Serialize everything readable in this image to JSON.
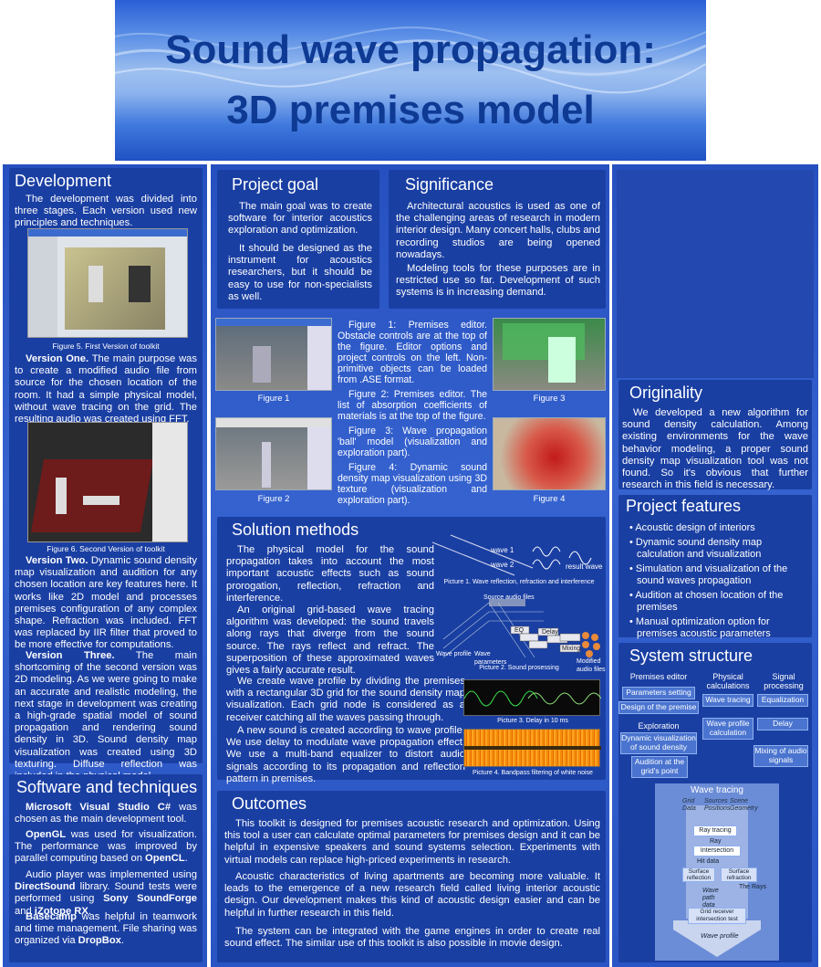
{
  "title_line1": "Sound wave propagation:",
  "title_line2": "3D premises model",
  "development": {
    "heading": "Development",
    "intro": "The development was divided into three stages. Each version used new principles and techniques.",
    "fig5_caption": "Figure 5. First Version of toolkit",
    "v1_title": "Version One.",
    "v1_text": "The main purpose was to create a modified audio file from source for the chosen location of the room. It had a simple physical model, without wave tracing on the grid. The resulting audio was created using FFT.",
    "fig6_caption": "Figure 6. Second Version of toolkit",
    "v2_title": "Version Two.",
    "v2_text": "Dynamic sound density map visualization and audition for any chosen location are key features here. It works like 2D model and processes premises configuration of any complex shape. Refraction was included. FFT was replaced by IIR filter that proved to be more effective for computations.",
    "v3_title": "Version Three.",
    "v3_text": "The main shortcoming of the second version was 2D modeling. As we were going to make an accurate and realistic modeling, the next stage in development was creating a high-grade spatial model of sound propagation and rendering sound density in 3D. Sound density map visualization was created using 3D texturing. Diffuse reflection was included in the physical model."
  },
  "software": {
    "heading": "Software and techniques",
    "p1_bold": "Microsoft Visual Studio C#",
    "p1_text": " was chosen as the main development tool.",
    "p2_bold": "OpenGL",
    "p2_text": " was used for visualization. The performance was improved by parallel computing based on ",
    "p2_bold2": "OpenCL",
    "p3_text": "Audio player was implemented using ",
    "p3_bold": "DirectSound",
    "p3_text2": " library. Sound tests were performed using ",
    "p3_bold2": "Sony SoundForge",
    "p3_text3": " and ",
    "p3_bold3": "iZotope RX",
    "p4_bold": "Basecamp",
    "p4_text": " was helpful in teamwork and time management. File sharing was organized via ",
    "p4_bold2": "DropBox"
  },
  "goal": {
    "heading": "Project goal",
    "p1": "The main goal was to create software for interior acoustics exploration and optimization.",
    "p2": "It should be designed as the instrument for acoustics researchers, but it should be easy to use for non-specialists as well."
  },
  "significance": {
    "heading": "Significance",
    "p1": "Architectural acoustics is used as one of the challenging areas of research in modern interior design. Many concert halls, clubs and recording studios are being opened nowadays.",
    "p2": "Modeling tools for these purposes are in restricted use so far. Development of such systems is  in increasing demand."
  },
  "figures": {
    "f1": "Figure 1",
    "f2": "Figure 2",
    "f3": "Figure 3",
    "f4": "Figure 4",
    "d1": "Figure 1: Premises editor. Obstacle controls are at the top of the figure. Editor options and project controls on the left. Non-primitive objects can be loaded from .ASE format.",
    "d2": "Figure 2: Premises editor. The list of absorption coefficients of materials is at the top of the figure.",
    "d3": "Figure 3: Wave propagation 'ball' model (visualization and exploration part).",
    "d4": "Figure 4: Dynamic sound density map visualization using 3D texture (visualization and exploration part)."
  },
  "solution": {
    "heading": "Solution methods",
    "p1": "The physical model for the sound propagation takes into account the most important acoustic effects such as sound prorogation, reflection, refraction and interference.",
    "p2": "An original grid-based wave tracing algorithm was developed: the sound travels along rays that diverge from the sound source. The rays reflect and refract. The superposition of these approximated waves gives a fairly accurate result.",
    "p3": "We create wave profile by dividing the premises with a rectangular 3D grid for the sound density map visualization. Each grid node is considered as a receiver catching all the waves passing through.",
    "p4": "A new sound is created according to wave profile. We use delay to modulate wave propagation effect. We use a multi-band equalizer to distort audio signals according to its propagation and reflection pattern in premises.",
    "pic1": "Picture 1. Wave reflection, refraction and interference",
    "pic2": "Picture 2. Sound prosessing",
    "pic3": "Picture 3. Delay in 10 ms",
    "pic4": "Picture 4. Bandpass filtering of white noise",
    "wave1": "wave 1",
    "wave2": "wave 2",
    "result": "result wave",
    "source_files": "Source audio files",
    "wave_profile": "Wave profile",
    "wave_params": "Wave parameters",
    "modified": "Modified audio files",
    "eq": "EQ",
    "delay": "Delay",
    "mixing": "Mixing"
  },
  "outcomes": {
    "heading": "Outcomes",
    "p1": "This toolkit is designed for premises acoustic research and optimization. Using this tool a user can calculate optimal parameters for premises design and it can be helpful in expensive speakers and sound systems selection. Experiments with virtual models can replace high-priced experiments in research.",
    "p2": "Acoustic characteristics of living apartments are becoming more valuable. It leads to the emergence of a new research field called living interior acoustic design. Our development makes this kind of acoustic design easier and can be helpful in further research in this field.",
    "p3": "The system can be integrated with the game engines in order to create real sound effect. The similar use of this toolkit is also possible in movie design."
  },
  "originality": {
    "heading": "Originality",
    "p1": "We developed a new algorithm for sound density calculation. Among existing environments for the wave behavior modeling, a proper sound density map visualization tool was not found. So it's obvious that further research in this field is necessary."
  },
  "features": {
    "heading": "Project features",
    "items": [
      "Acoustic design of interiors",
      "Dynamic sound density map calculation and visualization",
      "Simulation and visualization of the sound waves propagation",
      "Audition at chosen location of the premises",
      "Manual optimization option for premises acoustic parameters"
    ]
  },
  "system": {
    "heading": "System structure",
    "col1": "Premises editor",
    "col2": "Physical calculations",
    "col3": "Signal processing",
    "params": "Parameters setting",
    "design": "Design of the premise",
    "wave_tracing": "Wave tracing",
    "eq": "Equalization",
    "exploration": "Exploration",
    "wprofile": "Wave profile calculation",
    "delay": "Delay",
    "dynvis": "Dynamic visualization of sound density",
    "mixing": "Mixing of audio signals",
    "audition": "Audition at the grid's point",
    "wt_heading": "Wave tracing",
    "wt_grid": "Grid Data",
    "wt_sources": "Sources Positions",
    "wt_scene": "Scene Geometry",
    "wt_ray": "Ray tracing",
    "wt_rays": "Ray",
    "wt_inter": "Intersection",
    "wt_hit": "Hit data",
    "wt_refl": "Surface reflection",
    "wt_refr": "Surface refraction",
    "wt_newrays": "The Rays",
    "wt_wpd": "Wave path data",
    "wt_grid_test": "Grid receiver intersection test",
    "wt_wprof": "Wave profile"
  }
}
